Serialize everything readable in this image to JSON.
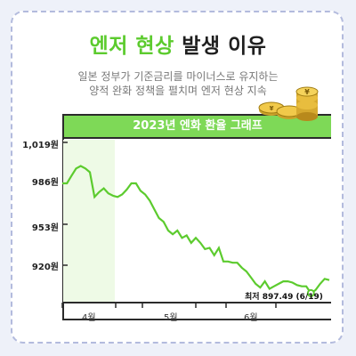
{
  "title": {
    "highlight": "엔저 현상",
    "rest": " 발생 이유"
  },
  "subtitle": [
    "일본 정부가 기준금리를 마이너스로 유지하는",
    "양적 완화 정책을 펼치며 엔저 현상 지속"
  ],
  "colors": {
    "accent": "#7ed957",
    "line": "#5ccb2e",
    "highlight_band": "#eefae6",
    "text": "#1f1f1f"
  },
  "icons": [
    "yen-coin-stack-icon"
  ],
  "chart_data": {
    "type": "line",
    "title": "2023년 엔화 환율 그래프",
    "y_ticks": [
      "1,019원",
      "986원",
      "953원",
      "920원"
    ],
    "y_tick_values": [
      1019,
      986,
      953,
      920
    ],
    "ylim": [
      903,
      1028
    ],
    "x_ticks": [
      "4월",
      "5월",
      "6월"
    ],
    "highlight_range": [
      "4월 시작",
      "4월 중순"
    ],
    "annotation": "최저 897.49 (6/19)",
    "series": [
      {
        "values": [
          986,
          986,
          992,
          998,
          1000,
          998,
          995,
          975,
          979,
          982,
          978,
          976,
          975,
          977,
          981,
          986,
          986,
          980,
          977,
          972,
          965,
          958,
          955,
          948,
          945,
          948,
          942,
          944,
          938,
          942,
          938,
          933,
          934,
          928,
          934,
          923,
          923,
          922,
          922,
          918,
          915,
          910,
          905,
          902,
          907,
          901,
          903,
          905,
          907,
          907,
          906,
          904,
          903,
          903,
          897.49,
          900,
          905,
          909,
          908
        ]
      }
    ]
  }
}
